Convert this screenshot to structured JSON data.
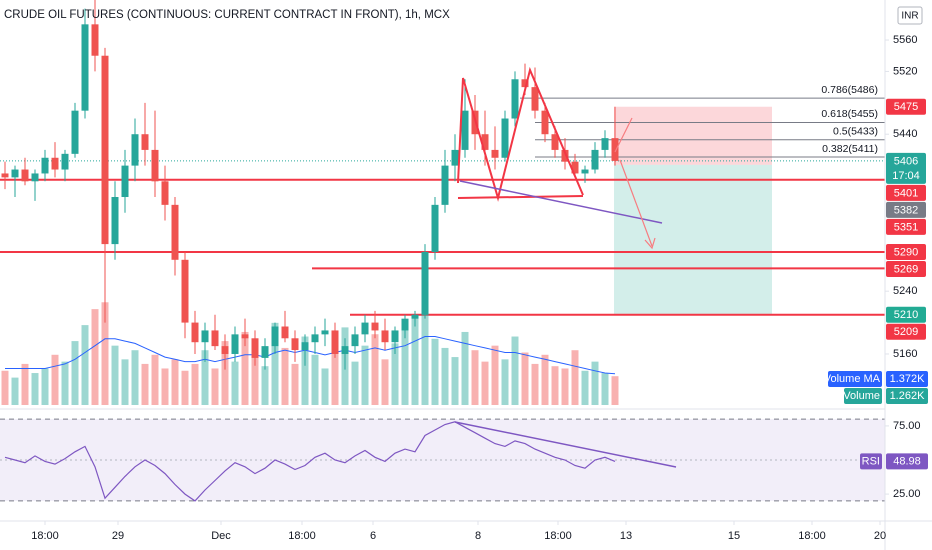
{
  "chart_data": {
    "type": "candlestick",
    "title": "CRUDE OIL FUTURES (CONTINUOUS: CURRENT CONTRACT IN FRONT), 1h, MCX",
    "currency": "INR",
    "up_color": "#26a69a",
    "down_color": "#ef5350",
    "ylim": [
      5095,
      5611
    ],
    "yticks": [
      5160,
      5240,
      5440,
      5520,
      5560
    ],
    "xlim": [
      0,
      88.5
    ],
    "xticks": [
      {
        "value": 4.5,
        "label": "18:00"
      },
      {
        "value": 11.8,
        "label": "29"
      },
      {
        "value": 22.1,
        "label": "Dec"
      },
      {
        "value": 30.2,
        "label": "18:00"
      },
      {
        "value": 37.3,
        "label": "6"
      },
      {
        "value": 47.8,
        "label": "8"
      },
      {
        "value": 55.8,
        "label": "18:00"
      },
      {
        "value": 62.6,
        "label": "13"
      },
      {
        "value": 73.4,
        "label": "15"
      },
      {
        "value": 81.2,
        "label": "18:00"
      },
      {
        "value": 88,
        "label": "20"
      }
    ],
    "candles": [
      [
        5390,
        5405,
        5370,
        5385
      ],
      [
        5385,
        5400,
        5360,
        5395
      ],
      [
        5395,
        5410,
        5375,
        5380
      ],
      [
        5380,
        5395,
        5355,
        5390
      ],
      [
        5390,
        5420,
        5380,
        5410
      ],
      [
        5410,
        5430,
        5385,
        5395
      ],
      [
        5395,
        5420,
        5380,
        5415
      ],
      [
        5415,
        5480,
        5410,
        5470
      ],
      [
        5470,
        5600,
        5460,
        5580
      ],
      [
        5580,
        5611,
        5520,
        5540
      ],
      [
        5540,
        5550,
        5200,
        5300
      ],
      [
        5300,
        5380,
        5280,
        5360
      ],
      [
        5360,
        5420,
        5340,
        5400
      ],
      [
        5400,
        5460,
        5380,
        5440
      ],
      [
        5440,
        5480,
        5400,
        5420
      ],
      [
        5420,
        5470,
        5360,
        5380
      ],
      [
        5380,
        5400,
        5330,
        5350
      ],
      [
        5350,
        5360,
        5260,
        5280
      ],
      [
        5280,
        5290,
        5180,
        5200
      ],
      [
        5200,
        5215,
        5160,
        5175
      ],
      [
        5175,
        5200,
        5150,
        5190
      ],
      [
        5190,
        5210,
        5165,
        5170
      ],
      [
        5170,
        5185,
        5140,
        5160
      ],
      [
        5160,
        5195,
        5150,
        5185
      ],
      [
        5185,
        5205,
        5170,
        5180
      ],
      [
        5180,
        5190,
        5145,
        5155
      ],
      [
        5155,
        5180,
        5140,
        5170
      ],
      [
        5170,
        5200,
        5160,
        5195
      ],
      [
        5195,
        5215,
        5175,
        5180
      ],
      [
        5180,
        5190,
        5150,
        5165
      ],
      [
        5165,
        5185,
        5145,
        5175
      ],
      [
        5175,
        5195,
        5160,
        5185
      ],
      [
        5185,
        5205,
        5170,
        5190
      ],
      [
        5190,
        5200,
        5155,
        5160
      ],
      [
        5160,
        5180,
        5140,
        5170
      ],
      [
        5170,
        5195,
        5160,
        5185
      ],
      [
        5185,
        5210,
        5175,
        5200
      ],
      [
        5200,
        5215,
        5180,
        5190
      ],
      [
        5190,
        5205,
        5165,
        5175
      ],
      [
        5175,
        5195,
        5160,
        5190
      ],
      [
        5190,
        5210,
        5180,
        5205
      ],
      [
        5205,
        5215,
        5195,
        5210
      ],
      [
        5210,
        5300,
        5205,
        5290
      ],
      [
        5290,
        5360,
        5280,
        5350
      ],
      [
        5350,
        5420,
        5340,
        5400
      ],
      [
        5400,
        5440,
        5380,
        5420
      ],
      [
        5420,
        5510,
        5410,
        5470
      ],
      [
        5470,
        5490,
        5420,
        5440
      ],
      [
        5440,
        5470,
        5400,
        5420
      ],
      [
        5420,
        5450,
        5395,
        5410
      ],
      [
        5410,
        5470,
        5405,
        5460
      ],
      [
        5460,
        5520,
        5450,
        5510
      ],
      [
        5510,
        5530,
        5490,
        5500
      ],
      [
        5500,
        5525,
        5460,
        5470
      ],
      [
        5470,
        5480,
        5430,
        5440
      ],
      [
        5440,
        5450,
        5410,
        5420
      ],
      [
        5420,
        5435,
        5395,
        5405
      ],
      [
        5405,
        5415,
        5385,
        5390
      ],
      [
        5390,
        5400,
        5378,
        5395
      ],
      [
        5395,
        5430,
        5390,
        5420
      ],
      [
        5420,
        5445,
        5410,
        5435
      ],
      [
        5435,
        5475,
        5400,
        5406
      ]
    ],
    "volume": {
      "name": "Volume",
      "label": "1.262K",
      "color": "#26a69a",
      "ylim": [
        0,
        4.6
      ],
      "values": [
        1.5,
        1.2,
        1.8,
        1.4,
        1.6,
        2.2,
        1.9,
        2.8,
        3.5,
        4.2,
        4.5,
        2.6,
        2.0,
        2.4,
        1.8,
        2.2,
        1.6,
        2.0,
        1.5,
        1.8,
        2.4,
        1.6,
        2.8,
        1.9,
        3.2,
        2.1,
        1.7,
        3.6,
        2.5,
        1.8,
        3.0,
        2.2,
        1.6,
        2.9,
        3.4,
        1.9,
        2.6,
        3.1,
        2.0,
        2.7,
        3.3,
        3.8,
        4.0,
        2.9,
        2.5,
        2.1,
        3.2,
        2.4,
        1.9,
        2.6,
        2.0,
        3.0,
        2.3,
        1.8,
        2.2,
        1.7,
        1.6,
        2.4,
        1.5,
        1.9,
        1.4,
        1.262
      ]
    },
    "volume_ma": {
      "name": "Volume MA",
      "label": "1.372K",
      "color": "#2962ff",
      "values": [
        1.6,
        1.6,
        1.6,
        1.6,
        1.6,
        1.7,
        1.8,
        2.0,
        2.3,
        2.6,
        2.9,
        2.9,
        2.8,
        2.7,
        2.5,
        2.3,
        2.1,
        2.0,
        1.9,
        1.9,
        2.0,
        1.9,
        2.0,
        2.1,
        2.2,
        2.2,
        2.1,
        2.3,
        2.4,
        2.3,
        2.4,
        2.3,
        2.2,
        2.3,
        2.4,
        2.3,
        2.4,
        2.5,
        2.4,
        2.5,
        2.6,
        2.8,
        3.0,
        3.0,
        2.9,
        2.8,
        2.7,
        2.6,
        2.5,
        2.4,
        2.3,
        2.3,
        2.2,
        2.1,
        2.0,
        1.9,
        1.8,
        1.7,
        1.6,
        1.5,
        1.4,
        1.372
      ]
    },
    "rsi": {
      "name": "RSI",
      "color": "#7e57c2",
      "ylim": [
        6,
        83
      ],
      "bands": [
        20,
        80
      ],
      "mid": 50,
      "yticks": [
        {
          "value": 25,
          "label": "25.00"
        },
        {
          "value": 75,
          "label": "75.00"
        }
      ],
      "values": [
        52,
        50,
        48,
        53,
        49,
        47,
        51,
        56,
        60,
        45,
        22,
        30,
        38,
        45,
        50,
        46,
        40,
        32,
        25,
        20,
        28,
        35,
        42,
        48,
        45,
        40,
        44,
        50,
        47,
        43,
        46,
        52,
        55,
        50,
        48,
        53,
        57,
        52,
        49,
        55,
        58,
        56,
        68,
        72,
        76,
        78,
        74,
        70,
        66,
        62,
        60,
        64,
        62,
        58,
        55,
        52,
        50,
        46,
        44,
        50,
        52,
        48.98
      ]
    },
    "hlines": [
      {
        "value": 5382,
        "from": 0,
        "color": "#f23645"
      },
      {
        "value": 5290,
        "from": 0,
        "color": "#f23645"
      },
      {
        "value": 5269,
        "from": 31.2,
        "color": "#f23645"
      },
      {
        "value": 5210,
        "from": 35,
        "color": "#f23645"
      }
    ],
    "fib_levels": [
      {
        "label": "0.786(5486)",
        "value": 5486,
        "from": 52
      },
      {
        "label": "0.618(5455)",
        "value": 5455,
        "from": 53.5
      },
      {
        "label": "0.5(5433)",
        "value": 5433,
        "from": 53.5
      },
      {
        "label": "0.382(5411)",
        "value": 5411,
        "from": 53.5
      }
    ],
    "position": {
      "entry": 5401,
      "stop": 5475,
      "target": 5209,
      "from": 61.4,
      "to": 77.2
    },
    "current_price": 5406,
    "countdown": "17:04",
    "price_tags": [
      {
        "value": 5475,
        "color": "#f23645"
      },
      {
        "value": 5406,
        "color": "#26a69a"
      },
      {
        "value": 5401,
        "color": "#f23645"
      },
      {
        "value": 5382,
        "color": "#787b86"
      },
      {
        "value": 5351,
        "color": "#f23645"
      },
      {
        "value": 5290,
        "color": "#f23645"
      },
      {
        "value": 5269,
        "color": "#f23645"
      },
      {
        "value": 5210,
        "color": "#22ab94"
      },
      {
        "value": 5209,
        "color": "#f23645"
      }
    ]
  }
}
